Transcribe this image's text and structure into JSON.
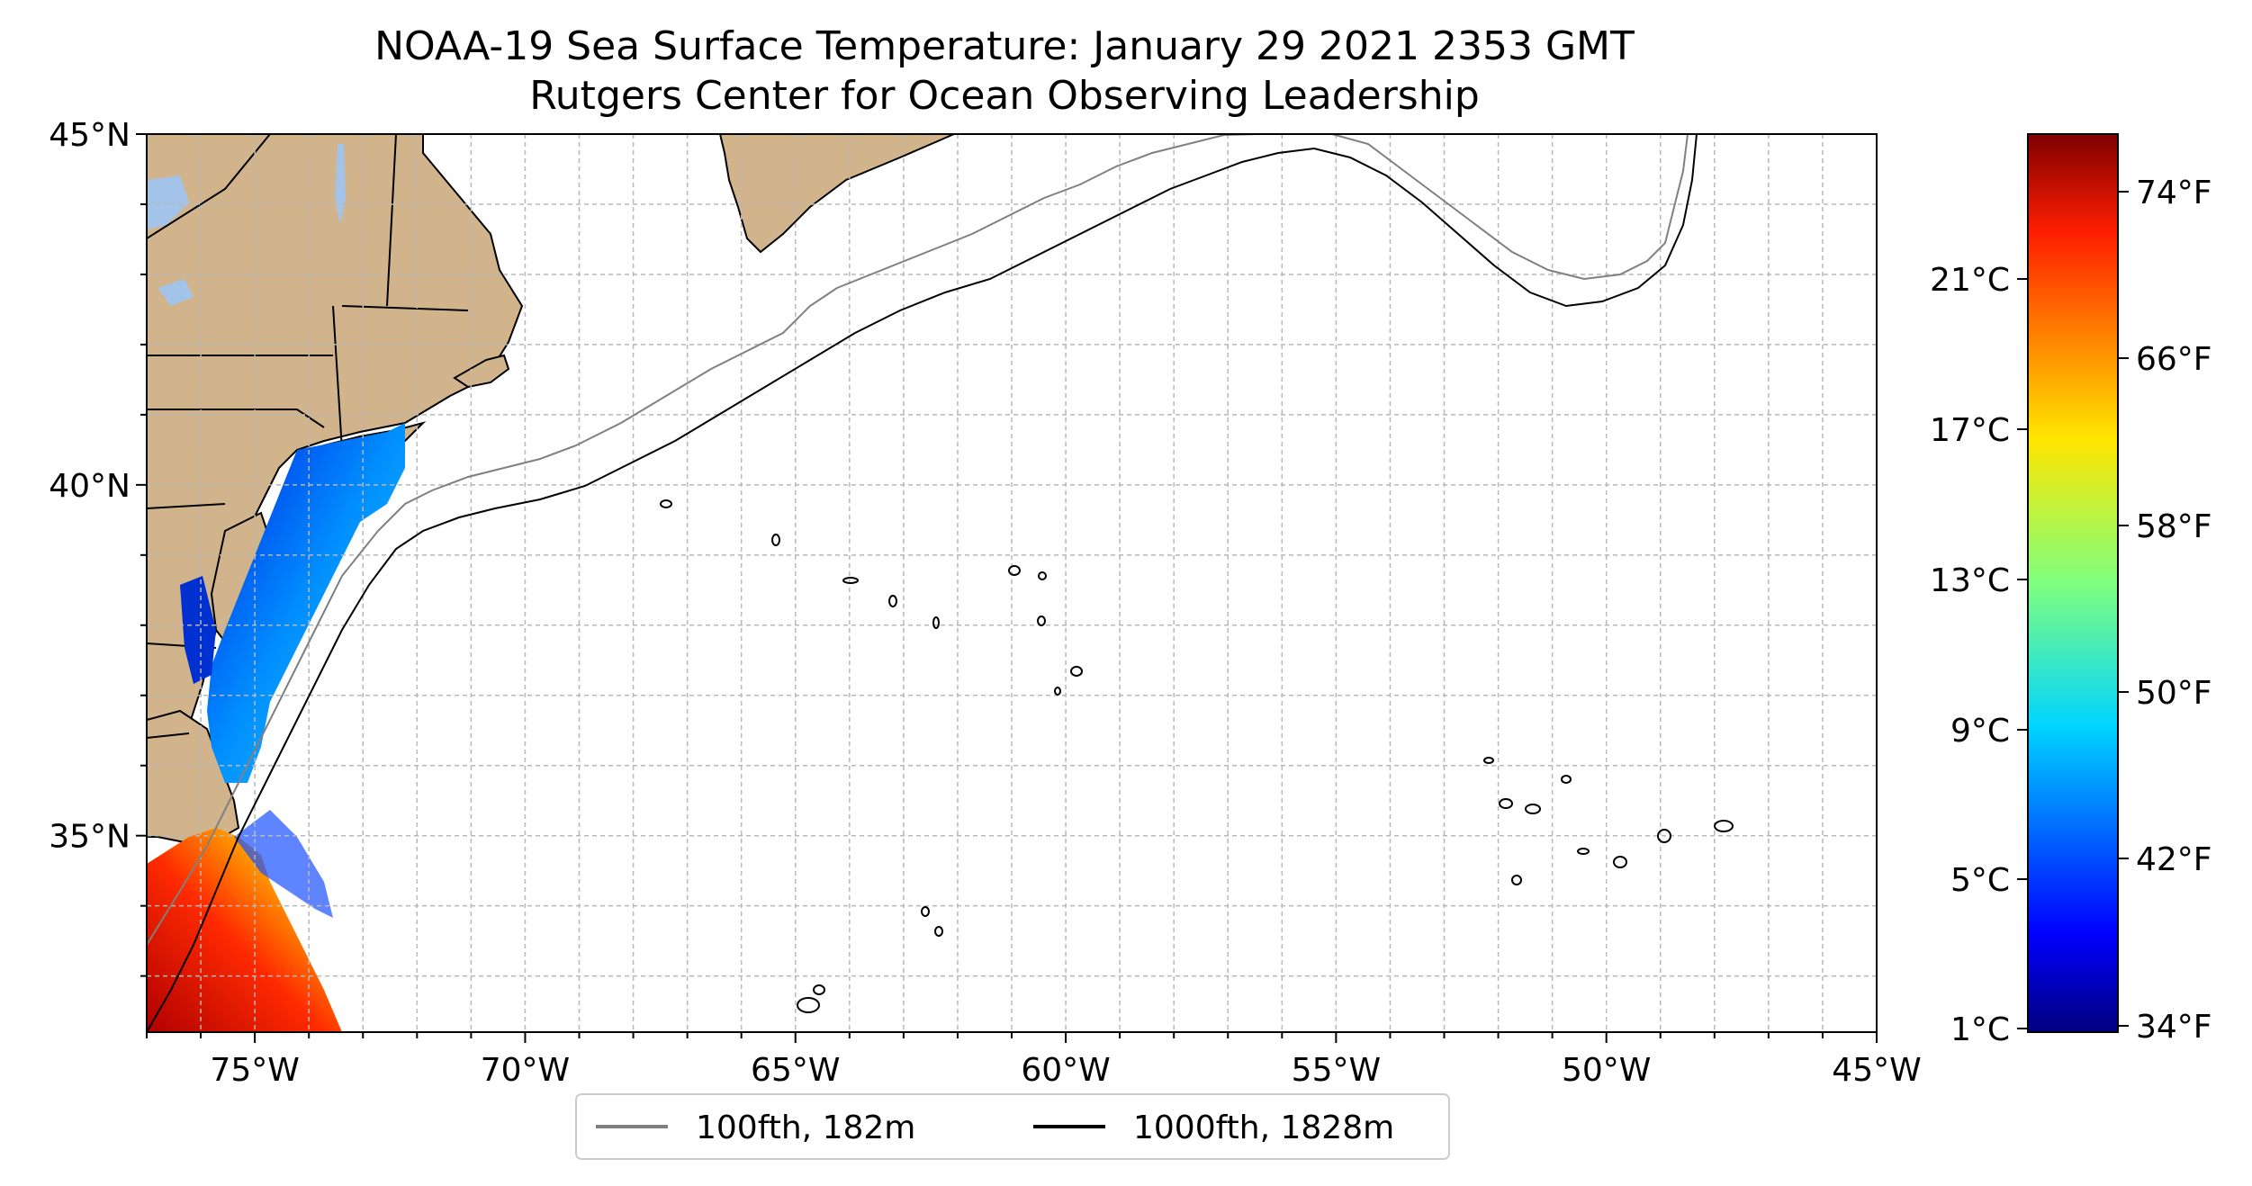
{
  "figure": {
    "title_line1": "NOAA-19 Sea Surface Temperature: January 29 2021 2353 GMT",
    "title_line2": "Rutgers Center for Ocean Observing Leadership"
  },
  "map": {
    "extent": {
      "lon": [
        -77,
        -45
      ],
      "lat": [
        32.2,
        45
      ]
    },
    "lon_ticks": [
      {
        "value": -75,
        "label": "75°W"
      },
      {
        "value": -70,
        "label": "70°W"
      },
      {
        "value": -65,
        "label": "65°W"
      },
      {
        "value": -60,
        "label": "60°W"
      },
      {
        "value": -55,
        "label": "55°W"
      },
      {
        "value": -50,
        "label": "50°W"
      },
      {
        "value": -45,
        "label": "45°W"
      }
    ],
    "lat_ticks": [
      {
        "value": 45,
        "label": "45°N"
      },
      {
        "value": 40,
        "label": "40°N"
      },
      {
        "value": 35,
        "label": "35°N"
      }
    ],
    "gridlines": true,
    "colors": {
      "land": "#d2b48c",
      "lakes": "#a4c3e8",
      "isobath_100fth": "#808080",
      "isobath_1000fth": "#000000"
    }
  },
  "legend": {
    "position": "bottom-center",
    "items": [
      {
        "label": "100fth, 182m",
        "color": "#808080"
      },
      {
        "label": "1000fth, 1828m",
        "color": "#000000"
      }
    ]
  },
  "colorbar": {
    "colormap": "jet",
    "celsius_labels": [
      "1°C",
      "5°C",
      "9°C",
      "13°C",
      "17°C",
      "21°C"
    ],
    "fahrenheit_labels": [
      "34°F",
      "42°F",
      "50°F",
      "58°F",
      "66°F",
      "74°F"
    ]
  }
}
